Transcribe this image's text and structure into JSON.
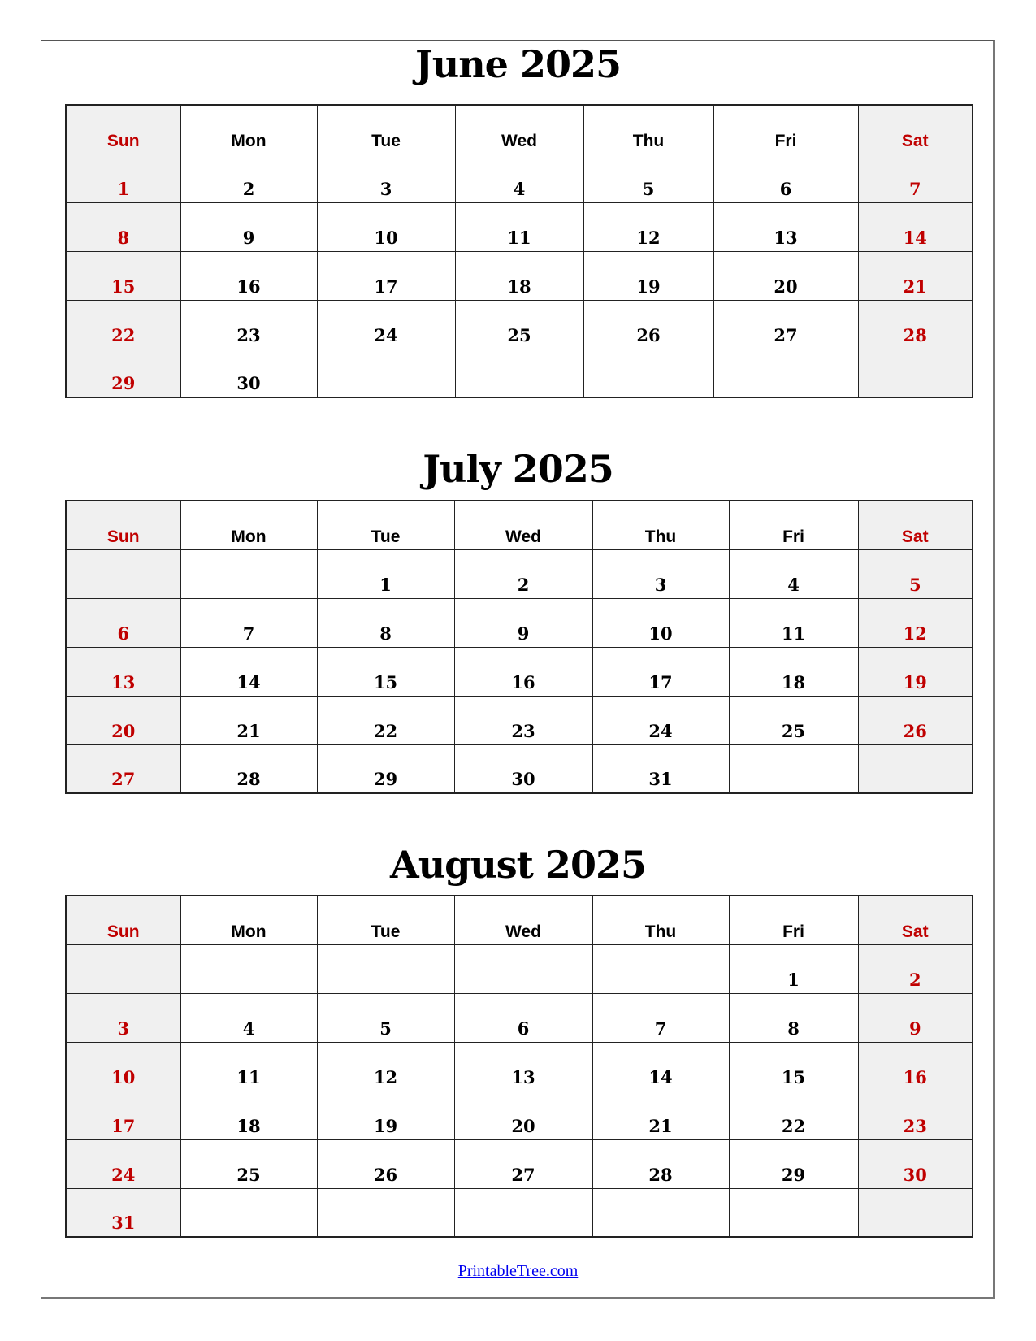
{
  "weekdays": [
    "Sun",
    "Mon",
    "Tue",
    "Wed",
    "Thu",
    "Fri",
    "Sat"
  ],
  "colors": {
    "weekend_text": "#c00000",
    "weekend_bg": "#f0f0f0",
    "link": "#0000ee"
  },
  "months": [
    {
      "title": "June 2025",
      "weeks": [
        [
          "1",
          "2",
          "3",
          "4",
          "5",
          "6",
          "7"
        ],
        [
          "8",
          "9",
          "10",
          "11",
          "12",
          "13",
          "14"
        ],
        [
          "15",
          "16",
          "17",
          "18",
          "19",
          "20",
          "21"
        ],
        [
          "22",
          "23",
          "24",
          "25",
          "26",
          "27",
          "28"
        ],
        [
          "29",
          "30",
          "",
          "",
          "",
          "",
          ""
        ]
      ]
    },
    {
      "title": "July 2025",
      "weeks": [
        [
          "",
          "",
          "1",
          "2",
          "3",
          "4",
          "5"
        ],
        [
          "6",
          "7",
          "8",
          "9",
          "10",
          "11",
          "12"
        ],
        [
          "13",
          "14",
          "15",
          "16",
          "17",
          "18",
          "19"
        ],
        [
          "20",
          "21",
          "22",
          "23",
          "24",
          "25",
          "26"
        ],
        [
          "27",
          "28",
          "29",
          "30",
          "31",
          "",
          ""
        ]
      ]
    },
    {
      "title": "August 2025",
      "weeks": [
        [
          "",
          "",
          "",
          "",
          "",
          "1",
          "2"
        ],
        [
          "3",
          "4",
          "5",
          "6",
          "7",
          "8",
          "9"
        ],
        [
          "10",
          "11",
          "12",
          "13",
          "14",
          "15",
          "16"
        ],
        [
          "17",
          "18",
          "19",
          "20",
          "21",
          "22",
          "23"
        ],
        [
          "24",
          "25",
          "26",
          "27",
          "28",
          "29",
          "30"
        ],
        [
          "31",
          "",
          "",
          "",
          "",
          "",
          ""
        ]
      ]
    }
  ],
  "footer": {
    "link_text": "PrintableTree.com"
  }
}
